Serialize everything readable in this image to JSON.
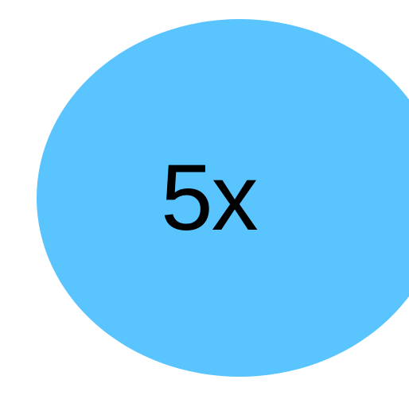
{
  "badge": {
    "label": "5x",
    "fill_color": "#5ac4ff",
    "text_color": "#000000"
  }
}
